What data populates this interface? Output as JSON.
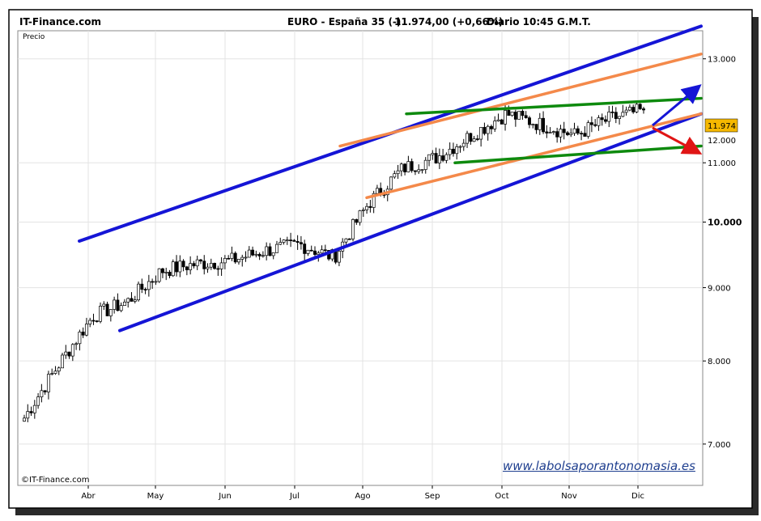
{
  "header": {
    "brand": "IT-Finance.com",
    "instrument": "EURO - España 35 (-)",
    "quote": "11.974,00 (+0,66%)",
    "period": "Diario  10:45 G.M.T."
  },
  "panel_label": "Precio",
  "footer_copyright": "©IT-Finance.com",
  "watermark": "www.labolsaporantonomasia.es",
  "colors": {
    "up_candle": "#ffffff",
    "down_candle": "#000000",
    "channel_primary": "#1515d6",
    "channel_secondary": "#f4894a",
    "channel_inner": "#0e8a0e",
    "arrow_up": "#1515d6",
    "arrow_down": "#e01515",
    "last_price_tag": "#f5b800"
  },
  "chart_data": {
    "type": "candlestick",
    "title": "EURO - España 35 (-)",
    "ylabel": "Precio",
    "y_scale": "log",
    "ylim": [
      6550,
      13600
    ],
    "x_tick_labels": [
      "Abr",
      "May",
      "Jun",
      "Jul",
      "Ago",
      "Sep",
      "Oct",
      "Nov",
      "Dic"
    ],
    "y_ticks": [
      {
        "value": 7000,
        "label": "7.000",
        "bold": false
      },
      {
        "value": 8000,
        "label": "8.000",
        "bold": false
      },
      {
        "value": 9000,
        "label": "9.000",
        "bold": false
      },
      {
        "value": 10000,
        "label": "10.000",
        "bold": true
      },
      {
        "value": 11000,
        "label": "11.000",
        "bold": false
      },
      {
        "value": 13000,
        "label": "13.000",
        "bold": false
      }
    ],
    "extra_y_tick_label": "12.000",
    "last_price": {
      "value": 11974,
      "label": "11.974"
    },
    "grid": true,
    "series_close_anchors": [
      {
        "month": "Mar end",
        "close": 7300
      },
      {
        "month": "Abr",
        "close": 7950
      },
      {
        "month": "Abr mid",
        "close": 8600
      },
      {
        "month": "May",
        "close": 8800
      },
      {
        "month": "May end",
        "close": 9250
      },
      {
        "month": "Jun",
        "close": 9350
      },
      {
        "month": "Jun end",
        "close": 9400
      },
      {
        "month": "Jul",
        "close": 9550
      },
      {
        "month": "Jul mid",
        "close": 9650
      },
      {
        "month": "Jul end",
        "close": 9450
      },
      {
        "month": "Ago",
        "close": 10300
      },
      {
        "month": "Ago mid",
        "close": 10900
      },
      {
        "month": "Sep",
        "close": 11100
      },
      {
        "month": "Sep mid",
        "close": 11500
      },
      {
        "month": "Oct",
        "close": 11900
      },
      {
        "month": "Oct mid",
        "close": 11700
      },
      {
        "month": "Nov",
        "close": 11500
      },
      {
        "month": "Nov mid",
        "close": 11800
      },
      {
        "month": "Dic",
        "close": 11974
      }
    ],
    "trendlines": [
      {
        "name": "blue-upper",
        "color": "#1515d6",
        "from": {
          "date": "Abr",
          "value": 9700
        },
        "to": {
          "date": "Dic end",
          "value": 13700
        }
      },
      {
        "name": "blue-lower",
        "color": "#1515d6",
        "from": {
          "date": "Abr mid",
          "value": 8400
        },
        "to": {
          "date": "Dic end",
          "value": 11900
        }
      },
      {
        "name": "orange-upper",
        "color": "#f4894a",
        "from": {
          "date": "Ago",
          "value": 11300
        },
        "to": {
          "date": "Dic end",
          "value": 13100
        }
      },
      {
        "name": "orange-lower",
        "color": "#f4894a",
        "from": {
          "date": "Ago",
          "value": 10400
        },
        "to": {
          "date": "Dic end",
          "value": 11900
        }
      },
      {
        "name": "green-upper",
        "color": "#0e8a0e",
        "from": {
          "date": "Sep",
          "value": 11900
        },
        "to": {
          "date": "Dic end",
          "value": 12200
        }
      },
      {
        "name": "green-lower",
        "color": "#0e8a0e",
        "from": {
          "date": "Sep",
          "value": 11000
        },
        "to": {
          "date": "Dic end",
          "value": 11300
        }
      }
    ]
  }
}
